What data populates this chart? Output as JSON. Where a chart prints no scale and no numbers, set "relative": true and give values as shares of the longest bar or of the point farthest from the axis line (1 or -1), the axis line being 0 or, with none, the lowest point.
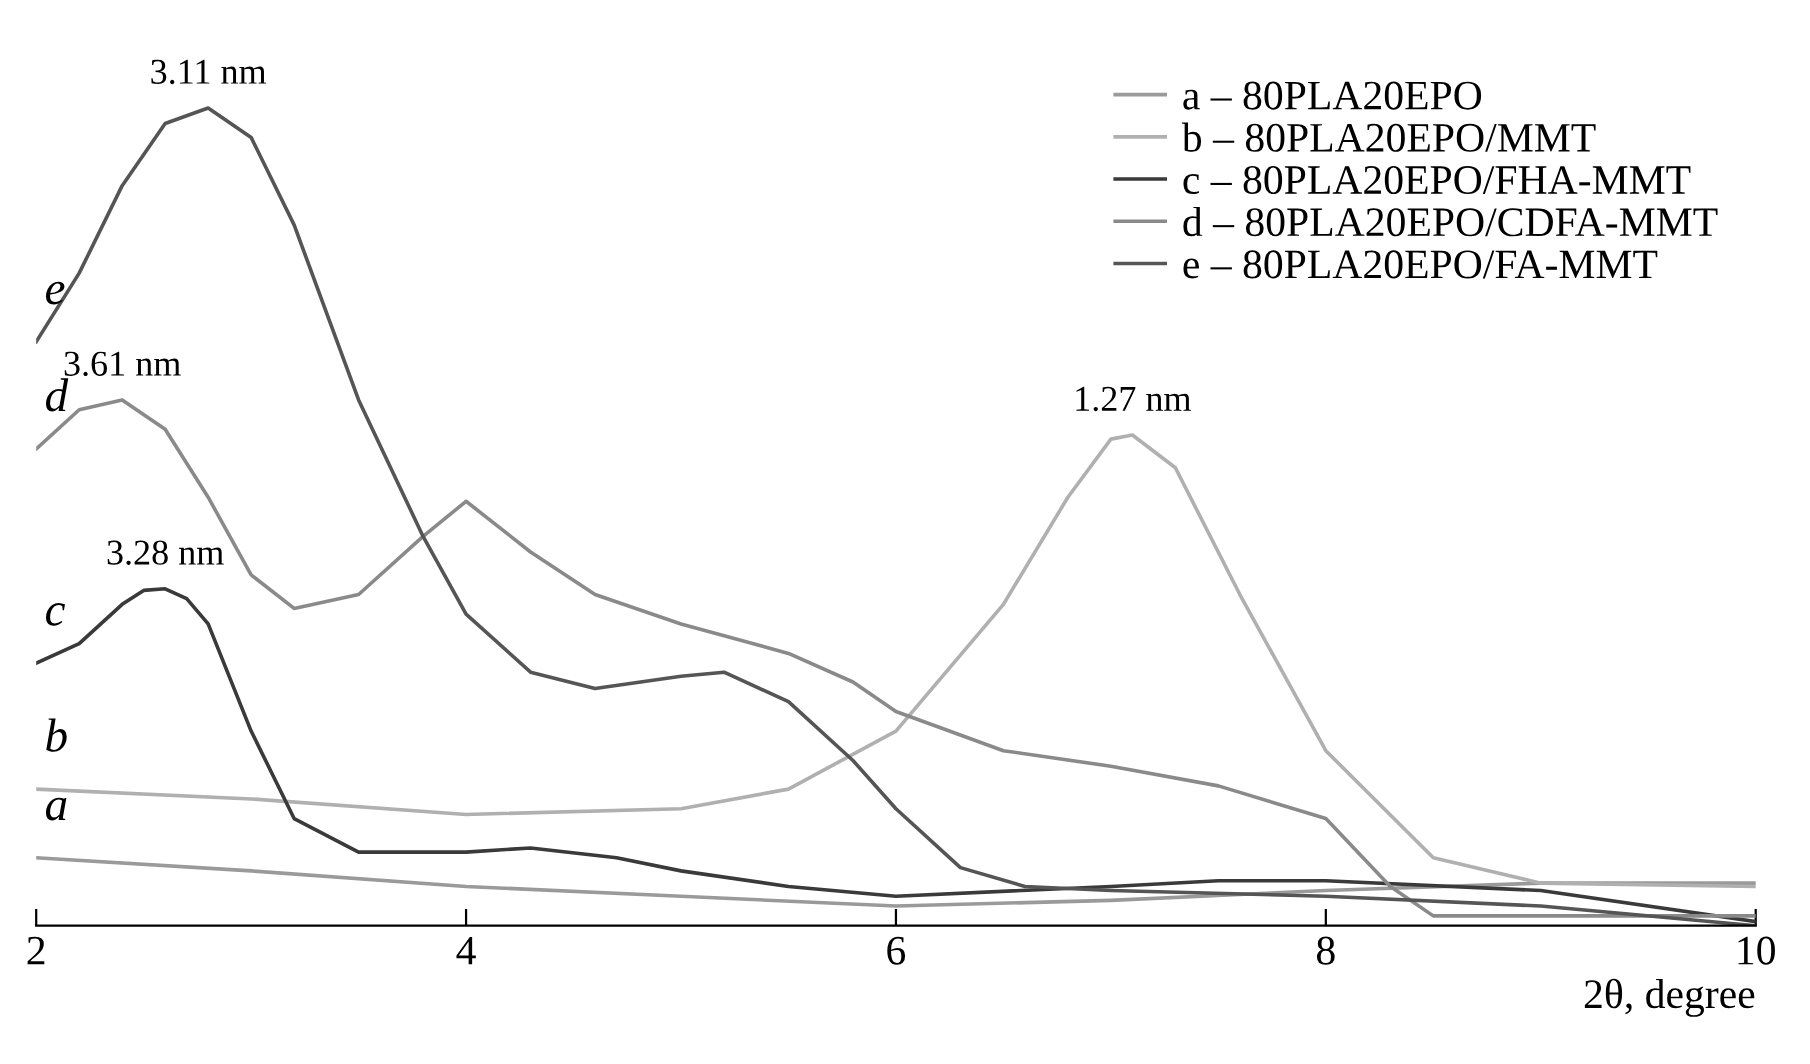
{
  "chart_data": {
    "type": "line",
    "relative": true,
    "xlabel": "2θ, degree",
    "xlim": [
      2,
      10
    ],
    "xticks": [
      2,
      4,
      6,
      8,
      10
    ],
    "tick_labels": "x",
    "grid": false,
    "legend": "top right",
    "marker": "none",
    "line_style": "solid",
    "series": [
      {
        "name": "a – 80PLA20EPO",
        "color": "#9a9a9a",
        "x": [
          2,
          3,
          4,
          5,
          6,
          7,
          8,
          9,
          10
        ],
        "values": [
          0.083,
          0.067,
          0.048,
          0.036,
          0.024,
          0.031,
          0.043,
          0.052,
          0.052
        ]
      },
      {
        "name": "b – 80PLA20EPO/MMT",
        "color": "#b0b0b0",
        "x": [
          2,
          3,
          4,
          5,
          5.5,
          6,
          6.5,
          6.8,
          7,
          7.1,
          7.3,
          7.6,
          8,
          8.5,
          9,
          10
        ],
        "values": [
          0.167,
          0.155,
          0.136,
          0.143,
          0.167,
          0.238,
          0.393,
          0.524,
          0.595,
          0.6,
          0.56,
          0.405,
          0.214,
          0.083,
          0.052,
          0.048
        ]
      },
      {
        "name": "c – 80PLA20EPO/FHA-MMT",
        "color": "#3a3a3a",
        "x": [
          2,
          2.2,
          2.4,
          2.5,
          2.6,
          2.7,
          2.8,
          3.0,
          3.2,
          3.5,
          4,
          4.3,
          4.7,
          5,
          5.5,
          6,
          7,
          7.5,
          8,
          9,
          10
        ],
        "values": [
          0.321,
          0.345,
          0.393,
          0.41,
          0.412,
          0.4,
          0.369,
          0.238,
          0.131,
          0.09,
          0.09,
          0.095,
          0.083,
          0.067,
          0.048,
          0.036,
          0.048,
          0.055,
          0.055,
          0.043,
          0.005
        ]
      },
      {
        "name": "d – 80PLA20EPO/CDFA-MMT",
        "color": "#8a8a8a",
        "x": [
          2,
          2.2,
          2.4,
          2.6,
          2.8,
          3.0,
          3.2,
          3.5,
          3.8,
          4.0,
          4.3,
          4.6,
          5.0,
          5.5,
          5.8,
          6.0,
          6.5,
          7,
          7.5,
          8,
          8.3,
          8.5,
          9,
          10
        ],
        "values": [
          0.583,
          0.631,
          0.643,
          0.607,
          0.524,
          0.429,
          0.388,
          0.405,
          0.476,
          0.519,
          0.457,
          0.405,
          0.369,
          0.333,
          0.298,
          0.262,
          0.214,
          0.195,
          0.171,
          0.131,
          0.048,
          0.012,
          0.012,
          0.012
        ]
      },
      {
        "name": "e – 80PLA20EPO/FA-MMT",
        "color": "#555555",
        "x": [
          2,
          2.2,
          2.4,
          2.6,
          2.8,
          3.0,
          3.2,
          3.5,
          3.8,
          4.0,
          4.3,
          4.6,
          5.0,
          5.2,
          5.5,
          5.8,
          6.0,
          6.3,
          6.6,
          7,
          8,
          9,
          10
        ],
        "values": [
          0.714,
          0.798,
          0.905,
          0.981,
          1,
          0.964,
          0.857,
          0.643,
          0.476,
          0.381,
          0.31,
          0.29,
          0.305,
          0.31,
          0.274,
          0.202,
          0.143,
          0.071,
          0.048,
          0.043,
          0.036,
          0.024,
          0
        ]
      }
    ],
    "annotations": [
      {
        "text": "3.11 nm",
        "x": 2.8,
        "y": 1
      },
      {
        "text": "3.61 nm",
        "x": 2.4,
        "y": 0.643
      },
      {
        "text": "3.28 nm",
        "x": 2.6,
        "y": 0.412
      },
      {
        "text": "1.27 nm",
        "x": 7.1,
        "y": 0.6
      },
      {
        "text": "a",
        "x": 2,
        "y": 0.083
      },
      {
        "text": "b",
        "x": 2,
        "y": 0.167
      },
      {
        "text": "c",
        "x": 2,
        "y": 0.321
      },
      {
        "text": "d",
        "x": 2,
        "y": 0.583
      },
      {
        "text": "e",
        "x": 2,
        "y": 0.714
      }
    ]
  }
}
